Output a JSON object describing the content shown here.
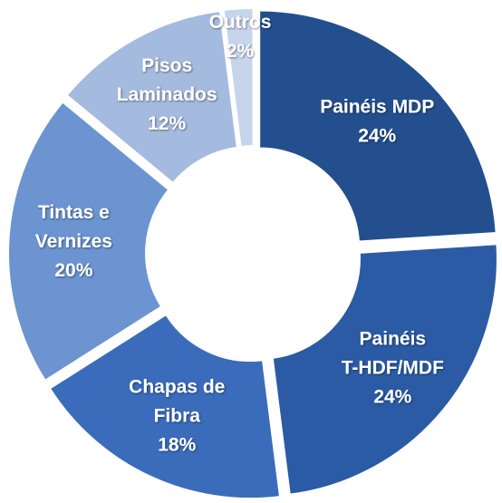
{
  "chart_data": {
    "type": "donut",
    "categories": [
      [
        "Painéis MDP"
      ],
      [
        "Painéis",
        "T-HDF/MDF"
      ],
      [
        "Chapas de",
        "Fibra"
      ],
      [
        "Tintas e",
        "Vernizes"
      ],
      [
        "Pisos",
        "Laminados"
      ],
      [
        "Outros"
      ]
    ],
    "values": [
      24,
      24,
      18,
      20,
      12,
      2
    ],
    "value_labels": [
      "24%",
      "24%",
      "18%",
      "20%",
      "12%",
      "2%"
    ],
    "colors": [
      "#234f8f",
      "#2b5ba5",
      "#3a6cbb",
      "#6b94d0",
      "#a4badf",
      "#c6d4ec"
    ]
  }
}
